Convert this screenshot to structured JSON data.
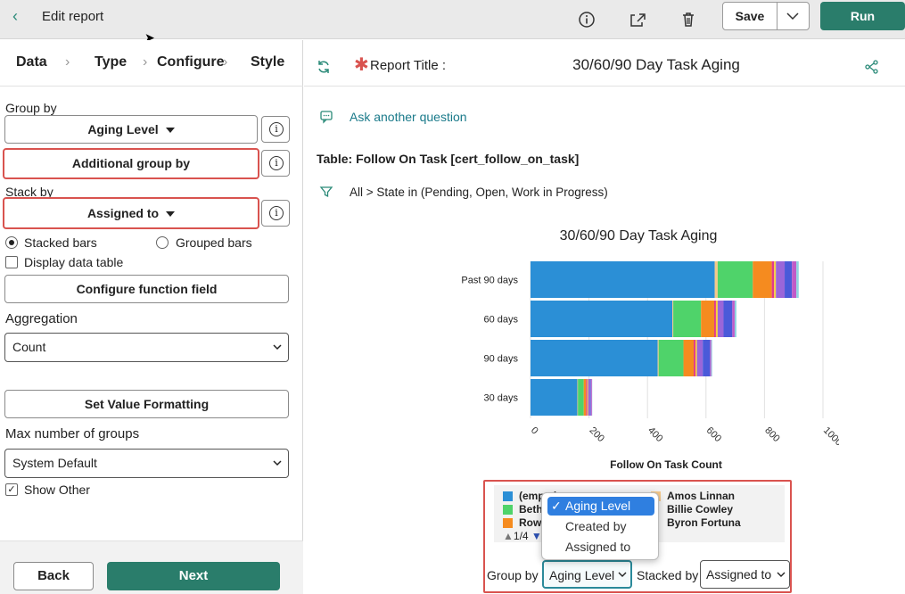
{
  "header": {
    "title": "Edit report",
    "save_label": "Save",
    "run_label": "Run"
  },
  "steps": [
    "Data",
    "Type",
    "Configure",
    "Style"
  ],
  "config": {
    "group_by_label": "Group by",
    "group_by_value": "Aging Level",
    "additional_group_by": "Additional group by",
    "stack_by_label": "Stack by",
    "stack_by_value": "Assigned to",
    "stacked_bars": "Stacked bars",
    "grouped_bars": "Grouped bars",
    "display_data_table": "Display data table",
    "configure_function_field": "Configure function field",
    "aggregation_label": "Aggregation",
    "aggregation_value": "Count",
    "set_value_formatting": "Set Value Formatting",
    "max_groups_label": "Max number of groups",
    "max_groups_value": "System Default",
    "show_other": "Show Other"
  },
  "footer": {
    "back": "Back",
    "next": "Next"
  },
  "report": {
    "title_label": "Report Title :",
    "title_value": "30/60/90 Day Task Aging",
    "ask_question": "Ask another question",
    "table": "Table: Follow On Task [cert_follow_on_task]",
    "filter": "All  >  State in (Pending, Open, Work in Progress)"
  },
  "colors": {
    "accent": "#2a7d6b",
    "highlight": "#d9534f",
    "link": "#1a7a8a"
  },
  "chart_data": {
    "type": "bar",
    "orientation": "horizontal",
    "stacked": true,
    "title": "30/60/90 Day Task Aging",
    "xlabel": "Follow On Task Count",
    "xlim": [
      0,
      1000
    ],
    "xticks": [
      0,
      200,
      400,
      600,
      800,
      1000
    ],
    "categories": [
      "Past 90 days",
      "60 days",
      "90 days",
      "30 days"
    ],
    "series": [
      {
        "name": "(empty)",
        "color": "#2b8fd6",
        "values": [
          630,
          485,
          435,
          160
        ]
      },
      {
        "color": "#f5c98a",
        "values": [
          10,
          3,
          3,
          2
        ]
      },
      {
        "name": "Beth",
        "color": "#4fd36a",
        "values": [
          120,
          95,
          85,
          20
        ]
      },
      {
        "color": "#f58b1f",
        "values": [
          65,
          45,
          35,
          8
        ]
      },
      {
        "color": "#e23a8a",
        "values": [
          8,
          6,
          6,
          4
        ]
      },
      {
        "color": "#f5d33a",
        "values": [
          6,
          6,
          5,
          3
        ]
      },
      {
        "color": "#9a66d9",
        "values": [
          30,
          20,
          20,
          8
        ]
      },
      {
        "color": "#4a5ad9",
        "values": [
          25,
          30,
          25,
          2
        ]
      },
      {
        "color": "#c05ac8",
        "values": [
          15,
          8,
          4,
          3
        ]
      },
      {
        "color": "#8fd3e0",
        "values": [
          8,
          6,
          3,
          1
        ]
      }
    ],
    "grid": true,
    "legend_entries_visible": [
      "(empty)",
      "Beth",
      "Amos Linnan",
      "Billie Cowley",
      "Byron Fortuna"
    ],
    "legend_pager": "1/4"
  },
  "legend": {
    "items": [
      "(empty)",
      "Beth",
      "Rowe",
      "Amos Linnan",
      "Billie Cowley",
      "Byron Fortuna"
    ],
    "pager": "1/4"
  },
  "dropdown": {
    "options": [
      "Aging Level",
      "Created by",
      "Assigned to"
    ],
    "selected": "Aging Level"
  },
  "bottom_controls": {
    "group_by_label": "Group by",
    "group_by_value": "Aging Level",
    "stacked_by_label": "Stacked by",
    "stacked_by_value": "Assigned to"
  }
}
